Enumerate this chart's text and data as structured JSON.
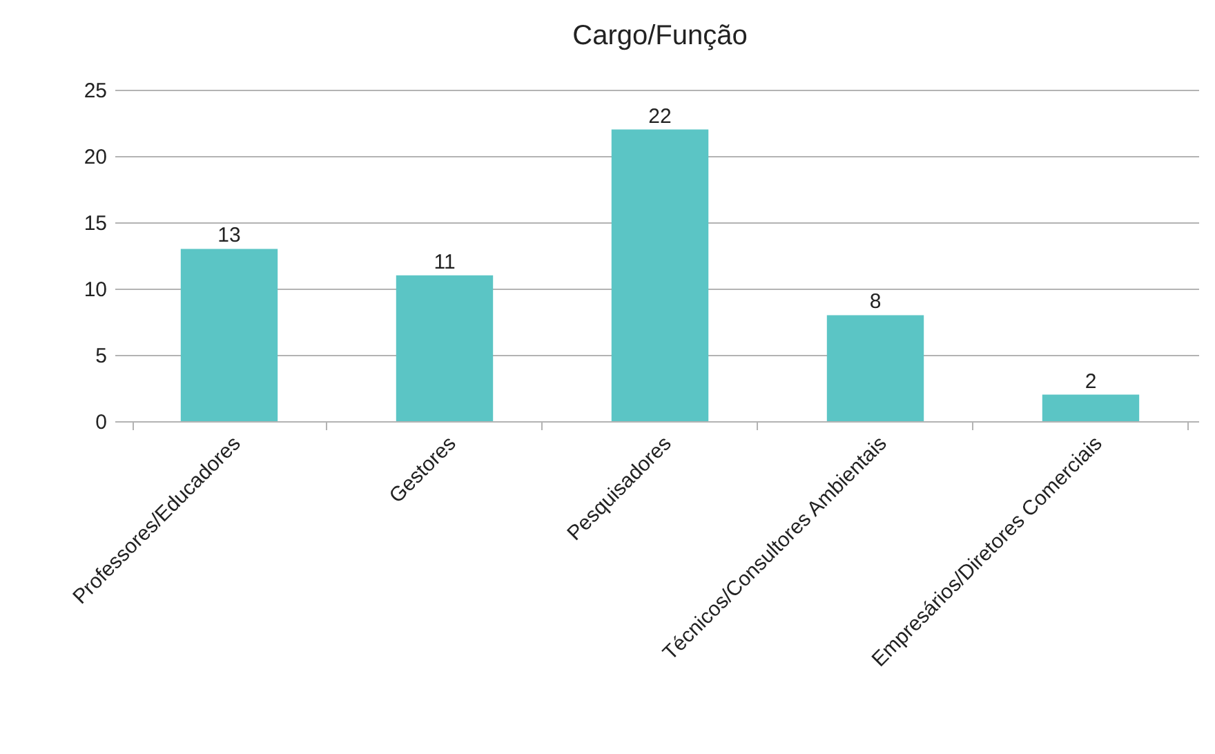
{
  "chart_data": {
    "type": "bar",
    "title": "Cargo/Função",
    "categories": [
      "Professores/Educadores",
      "Gestores",
      "Pesquisadores",
      "Técnicos/Consultores Ambientais",
      "Empresários/Diretores Comerciais"
    ],
    "values": [
      13,
      11,
      22,
      8,
      2
    ],
    "color": "#5bc5c5",
    "ylim": [
      0,
      25
    ],
    "yticks": [
      0,
      5,
      10,
      15,
      20,
      25
    ],
    "grid": "y",
    "data_labels": true
  }
}
